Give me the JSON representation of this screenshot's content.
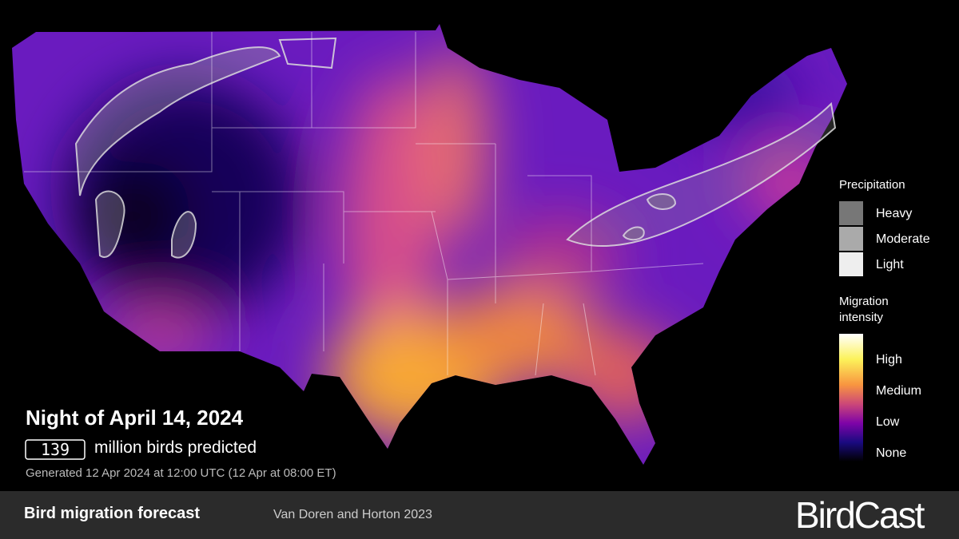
{
  "map": {
    "date_title": "Night of April 14, 2024",
    "bird_count": "139",
    "bird_count_text": "million birds predicted",
    "generated": "Generated 12 Apr 2024 at 12:00 UTC (12 Apr at 08:00 ET)"
  },
  "legend": {
    "precipitation_title": "Precipitation",
    "precipitation_levels": [
      "Heavy",
      "Moderate",
      "Light"
    ],
    "intensity_title": "Migration intensity",
    "intensity_levels": [
      "High",
      "Medium",
      "Low",
      "None"
    ]
  },
  "footer": {
    "title": "Bird migration forecast",
    "credit": "Van Doren and Horton 2023",
    "logo": "BirdCast"
  }
}
